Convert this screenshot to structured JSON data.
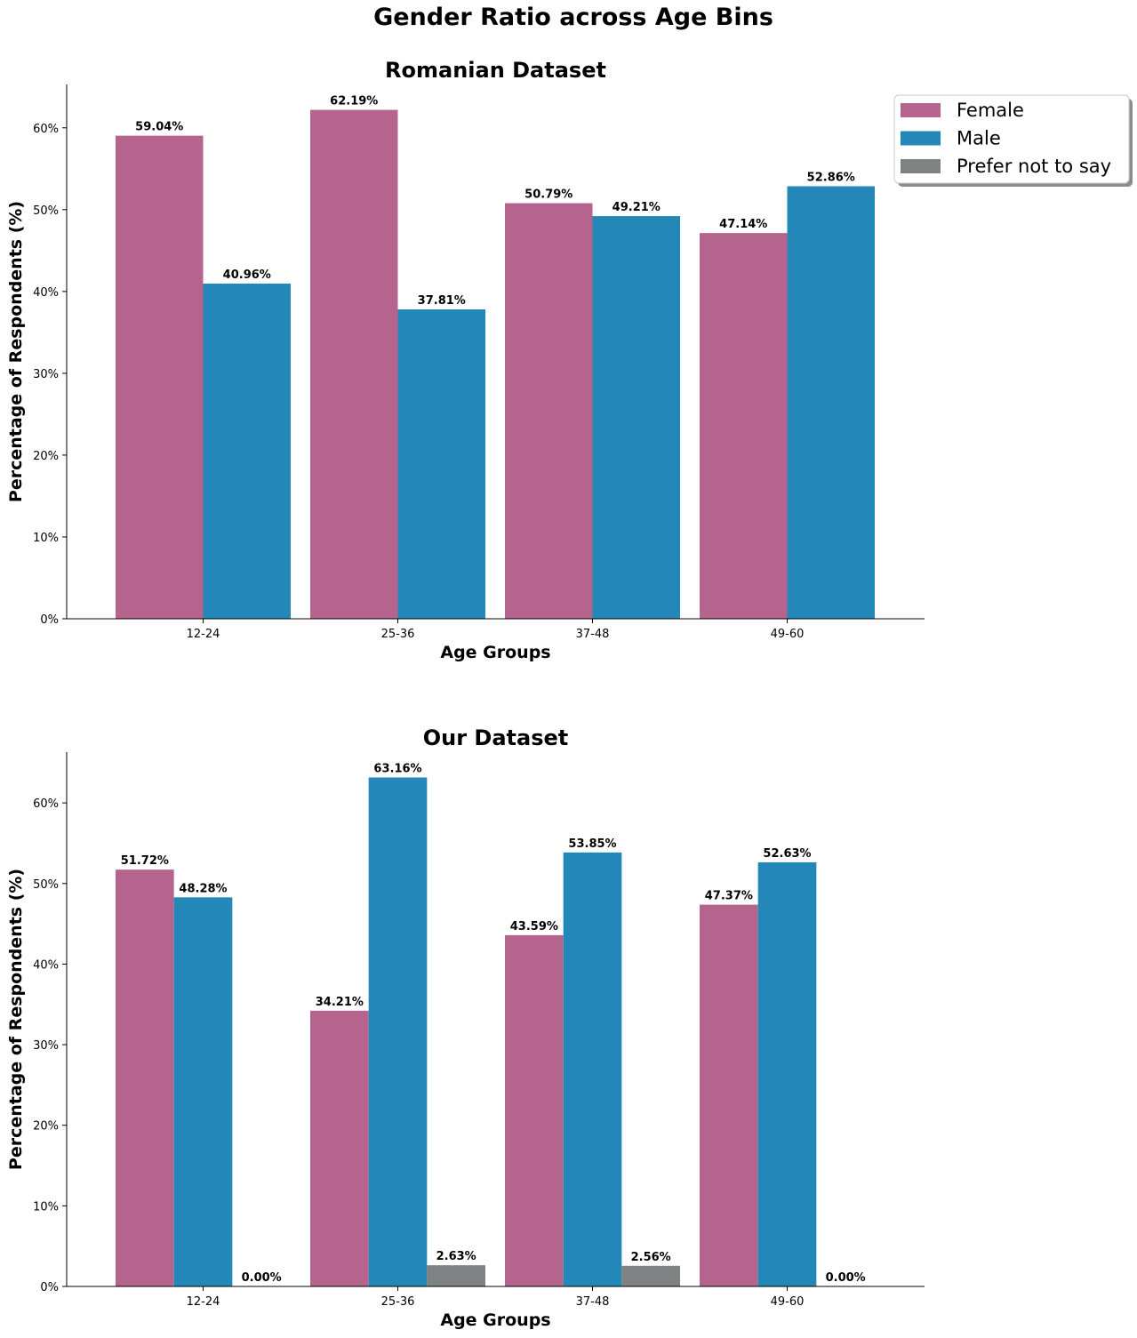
{
  "figure": {
    "title": "Gender Ratio across Age Bins"
  },
  "legend": {
    "placement": "upper right, outside first chart",
    "entries": [
      {
        "label": "Female",
        "color": "#b5658d"
      },
      {
        "label": "Male",
        "color": "#2388b8"
      },
      {
        "label": "Prefer not to say",
        "color": "#7f8283"
      }
    ]
  },
  "chart_data": [
    {
      "type": "bar",
      "title": "Romanian Dataset",
      "xlabel": "Age Groups",
      "ylabel": "Percentage of Respondents (%)",
      "categories": [
        "12-24",
        "25-36",
        "37-48",
        "49-60"
      ],
      "ylim": [
        0,
        65.3
      ],
      "yticks": [
        "0%",
        "10%",
        "20%",
        "30%",
        "40%",
        "50%",
        "60%"
      ],
      "grid": false,
      "series": [
        {
          "name": "Female",
          "color": "#b5658d",
          "values": [
            59.04,
            62.19,
            50.79,
            47.14
          ],
          "labels": [
            "59.04%",
            "62.19%",
            "50.79%",
            "47.14%"
          ]
        },
        {
          "name": "Male",
          "color": "#2388b8",
          "values": [
            40.96,
            37.81,
            49.21,
            52.86
          ],
          "labels": [
            "40.96%",
            "37.81%",
            "49.21%",
            "52.86%"
          ]
        }
      ]
    },
    {
      "type": "bar",
      "title": "Our Dataset",
      "xlabel": "Age Groups",
      "ylabel": "Percentage of Respondents (%)",
      "categories": [
        "12-24",
        "25-36",
        "37-48",
        "49-60"
      ],
      "ylim": [
        0,
        66.3
      ],
      "yticks": [
        "0%",
        "10%",
        "20%",
        "30%",
        "40%",
        "50%",
        "60%"
      ],
      "grid": false,
      "series": [
        {
          "name": "Female",
          "color": "#b5658d",
          "values": [
            51.72,
            34.21,
            43.59,
            47.37
          ],
          "labels": [
            "51.72%",
            "34.21%",
            "43.59%",
            "47.37%"
          ]
        },
        {
          "name": "Male",
          "color": "#2388b8",
          "values": [
            48.28,
            63.16,
            53.85,
            52.63
          ],
          "labels": [
            "48.28%",
            "63.16%",
            "53.85%",
            "52.63%"
          ]
        },
        {
          "name": "Prefer not to say",
          "color": "#7f8283",
          "values": [
            0.0,
            2.63,
            2.56,
            0.0
          ],
          "labels": [
            "0.00%",
            "2.63%",
            "2.56%",
            "0.00%"
          ]
        }
      ]
    }
  ]
}
